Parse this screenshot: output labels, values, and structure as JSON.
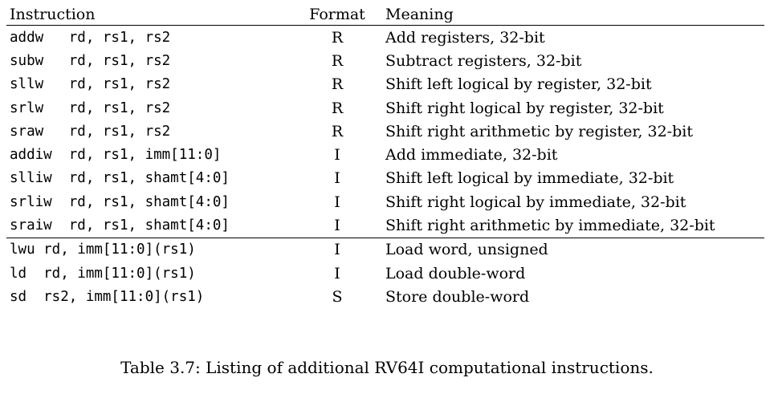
{
  "table": {
    "headers": {
      "instruction": "Instruction",
      "format": "Format",
      "meaning": "Meaning"
    },
    "rows": [
      {
        "instruction": "addw   rd, rs1, rs2",
        "format": "R",
        "meaning": "Add registers, 32-bit"
      },
      {
        "instruction": "subw   rd, rs1, rs2",
        "format": "R",
        "meaning": "Subtract registers, 32-bit"
      },
      {
        "instruction": "sllw   rd, rs1, rs2",
        "format": "R",
        "meaning": "Shift left logical by register, 32-bit"
      },
      {
        "instruction": "srlw   rd, rs1, rs2",
        "format": "R",
        "meaning": "Shift right logical by register, 32-bit"
      },
      {
        "instruction": "sraw   rd, rs1, rs2",
        "format": "R",
        "meaning": "Shift right arithmetic by register, 32-bit"
      },
      {
        "instruction": "addiw  rd, rs1, imm[11:0]",
        "format": "I",
        "meaning": "Add immediate, 32-bit"
      },
      {
        "instruction": "slliw  rd, rs1, shamt[4:0]",
        "format": "I",
        "meaning": "Shift left logical by immediate, 32-bit"
      },
      {
        "instruction": "srliw  rd, rs1, shamt[4:0]",
        "format": "I",
        "meaning": "Shift right logical by immediate, 32-bit"
      },
      {
        "instruction": "sraiw  rd, rs1, shamt[4:0]",
        "format": "I",
        "meaning": "Shift right arithmetic by immediate, 32-bit"
      },
      {
        "instruction": "lwu rd, imm[11:0](rs1)",
        "format": "I",
        "meaning": "Load word, unsigned"
      },
      {
        "instruction": "ld  rd, imm[11:0](rs1)",
        "format": "I",
        "meaning": "Load double-word"
      },
      {
        "instruction": "sd  rs2, imm[11:0](rs1)",
        "format": "S",
        "meaning": "Store double-word"
      }
    ]
  },
  "caption": "Table 3.7: Listing of additional RV64I computational instructions."
}
